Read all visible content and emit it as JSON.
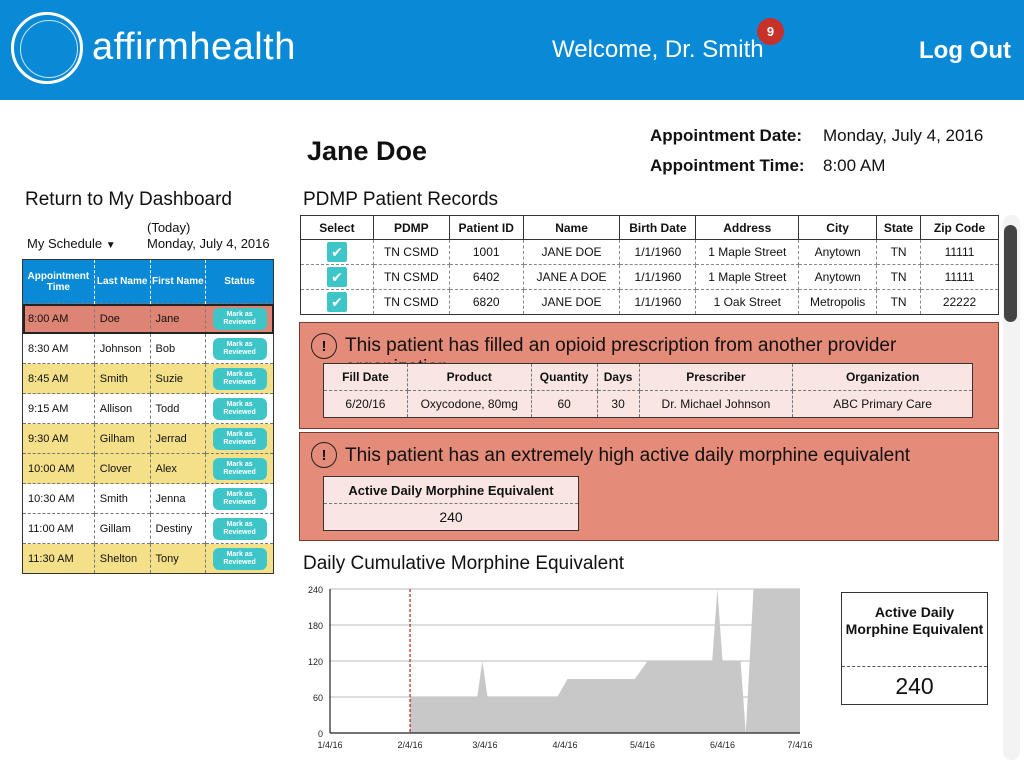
{
  "header": {
    "logo": "affirmhealth",
    "welcome": "Welcome, Dr. Smith",
    "notification_count": "9",
    "logout": "Log Out"
  },
  "patient": {
    "name": "Jane Doe",
    "appt_date_label": "Appointment Date:",
    "appt_date": "Monday, July 4, 2016",
    "appt_time_label": "Appointment Time:",
    "appt_time": "8:00 AM"
  },
  "left": {
    "return_link": "Return to My Dashboard",
    "schedule_label": "My Schedule",
    "today_label": "(Today)",
    "today_date": "Monday, July 4, 2016",
    "columns": [
      "Appointment Time",
      "Last Name",
      "First Name",
      "Status"
    ],
    "mark_label": "Mark as Reviewed",
    "rows": [
      {
        "time": "8:00 AM",
        "last": "Doe",
        "first": "Jane",
        "style": "red"
      },
      {
        "time": "8:30 AM",
        "last": "Johnson",
        "first": "Bob",
        "style": "white"
      },
      {
        "time": "8:45 AM",
        "last": "Smith",
        "first": "Suzie",
        "style": "yellow"
      },
      {
        "time": "9:15 AM",
        "last": "Allison",
        "first": "Todd",
        "style": "white"
      },
      {
        "time": "9:30 AM",
        "last": "Gilham",
        "first": "Jerrad",
        "style": "yellow"
      },
      {
        "time": "10:00 AM",
        "last": "Clover",
        "first": "Alex",
        "style": "yellow"
      },
      {
        "time": "10:30 AM",
        "last": "Smith",
        "first": "Jenna",
        "style": "white"
      },
      {
        "time": "11:00 AM",
        "last": "Gillam",
        "first": "Destiny",
        "style": "white"
      },
      {
        "time": "11:30 AM",
        "last": "Shelton",
        "first": "Tony",
        "style": "yellow"
      }
    ]
  },
  "pdmp": {
    "title": "PDMP Patient Records",
    "columns": [
      "Select",
      "PDMP",
      "Patient ID",
      "Name",
      "Birth Date",
      "Address",
      "City",
      "State",
      "Zip Code"
    ],
    "rows": [
      {
        "pdmp": "TN CSMD",
        "id": "1001",
        "name": "JANE DOE",
        "birth": "1/1/1960",
        "address": "1 Maple Street",
        "city": "Anytown",
        "state": "TN",
        "zip": "11111"
      },
      {
        "pdmp": "TN CSMD",
        "id": "6402",
        "name": "JANE A DOE",
        "birth": "1/1/1960",
        "address": "1 Maple Street",
        "city": "Anytown",
        "state": "TN",
        "zip": "11111"
      },
      {
        "pdmp": "TN CSMD",
        "id": "6820",
        "name": "JANE DOE",
        "birth": "1/1/1960",
        "address": "1 Oak Street",
        "city": "Metropolis",
        "state": "TN",
        "zip": "22222"
      }
    ]
  },
  "alert1": {
    "icon": "!",
    "text": "This patient has filled an opioid prescription from another provider organization",
    "columns": [
      "Fill Date",
      "Product",
      "Quantity",
      "Days",
      "Prescriber",
      "Organization"
    ],
    "row": {
      "fill": "6/20/16",
      "product": "Oxycodone, 80mg",
      "qty": "60",
      "days": "30",
      "prescriber": "Dr. Michael Johnson",
      "org": "ABC Primary Care"
    }
  },
  "alert2": {
    "icon": "!",
    "text": "This patient has an extremely high active daily morphine equivalent",
    "header": "Active Daily Morphine Equivalent",
    "value": "240"
  },
  "chart_title": "Daily Cumulative Morphine Equivalent",
  "side_box": {
    "title": "Active Daily Morphine Equivalent",
    "value": "240"
  },
  "chart_data": {
    "type": "area",
    "title": "Daily Cumulative Morphine Equivalent",
    "x_ticks": [
      "1/4/16",
      "2/4/16",
      "3/4/16",
      "4/4/16",
      "5/4/16",
      "6/4/16",
      "7/4/16"
    ],
    "y_ticks": [
      0,
      60,
      120,
      180,
      240
    ],
    "ylim": [
      0,
      240
    ],
    "marker_date": "2/4/16",
    "series": [
      {
        "x": [
          "2/4/16",
          "3/1/16",
          "3/3/16",
          "3/5/16",
          "4/1/16",
          "4/5/16",
          "5/1/16",
          "5/6/16",
          "5/31/16",
          "6/2/16",
          "6/4/16",
          "6/11/16",
          "6/13/16",
          "6/16/16",
          "7/4/16"
        ],
        "values": [
          60,
          60,
          120,
          60,
          60,
          90,
          90,
          120,
          120,
          240,
          120,
          120,
          0,
          240,
          240
        ]
      }
    ],
    "grid": true,
    "color": "#c8c8c8"
  },
  "colors": {
    "header": "#0a8ad6",
    "alert": "#e48b79",
    "yellow_row": "#f5e08a",
    "red_row": "#dd8474",
    "button": "#3ec5c8"
  }
}
